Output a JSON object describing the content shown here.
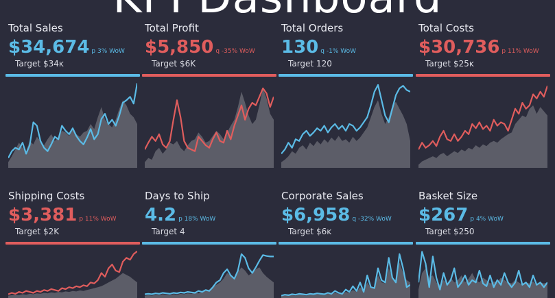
{
  "header": {
    "title": "KPI Dashboard"
  },
  "colors": {
    "background": "#2b2c3b",
    "blue": "#5bbbe6",
    "red": "#e05d5d",
    "area": "#5c5d68"
  },
  "kpis": [
    {
      "label": "Total Sales",
      "value": "$34,674",
      "change": "p 3% WoW",
      "target": "Target $34ĸ",
      "status": "blue",
      "line": [
        0.1,
        0.18,
        0.22,
        0.2,
        0.28,
        0.15,
        0.25,
        0.52,
        0.48,
        0.3,
        0.22,
        0.18,
        0.26,
        0.35,
        0.32,
        0.48,
        0.42,
        0.38,
        0.45,
        0.36,
        0.3,
        0.26,
        0.34,
        0.44,
        0.32,
        0.38,
        0.56,
        0.62,
        0.5,
        0.55,
        0.48,
        0.6,
        0.75,
        0.78,
        0.82,
        0.74,
        0.98
      ],
      "area": [
        0.05,
        0.12,
        0.2,
        0.28,
        0.22,
        0.18,
        0.3,
        0.26,
        0.35,
        0.3,
        0.25,
        0.32,
        0.38,
        0.3,
        0.35,
        0.42,
        0.4,
        0.36,
        0.45,
        0.38,
        0.35,
        0.4,
        0.42,
        0.5,
        0.44,
        0.58,
        0.7,
        0.55,
        0.5,
        0.46,
        0.55,
        0.68,
        0.78,
        0.72,
        0.62,
        0.58,
        0.5
      ]
    },
    {
      "label": "Total Profit",
      "value": "$5,850",
      "change": "q -35% WoW",
      "target": "Target $6K",
      "status": "red",
      "line": [
        0.2,
        0.28,
        0.35,
        0.3,
        0.38,
        0.26,
        0.22,
        0.3,
        0.55,
        0.78,
        0.58,
        0.3,
        0.22,
        0.2,
        0.18,
        0.35,
        0.3,
        0.25,
        0.22,
        0.32,
        0.4,
        0.3,
        0.28,
        0.42,
        0.32,
        0.48,
        0.6,
        0.72,
        0.55,
        0.68,
        0.75,
        0.72,
        0.82,
        0.92,
        0.86,
        0.7,
        0.82
      ],
      "area": [
        0.05,
        0.1,
        0.08,
        0.18,
        0.22,
        0.15,
        0.2,
        0.28,
        0.26,
        0.3,
        0.22,
        0.18,
        0.25,
        0.3,
        0.32,
        0.4,
        0.35,
        0.28,
        0.3,
        0.36,
        0.42,
        0.38,
        0.32,
        0.4,
        0.48,
        0.55,
        0.7,
        0.88,
        0.75,
        0.6,
        0.5,
        0.55,
        0.72,
        0.92,
        0.8,
        0.62,
        0.55
      ]
    },
    {
      "label": "Total Orders",
      "value": "130",
      "change": "q -1% WoW",
      "target": "Target 120",
      "status": "blue",
      "line": [
        0.15,
        0.2,
        0.28,
        0.22,
        0.32,
        0.3,
        0.38,
        0.42,
        0.36,
        0.4,
        0.45,
        0.42,
        0.48,
        0.4,
        0.46,
        0.5,
        0.44,
        0.48,
        0.42,
        0.5,
        0.48,
        0.42,
        0.46,
        0.52,
        0.58,
        0.72,
        0.88,
        0.96,
        0.78,
        0.6,
        0.52,
        0.68,
        0.84,
        0.92,
        0.95,
        0.9,
        0.88
      ],
      "area": [
        0.05,
        0.08,
        0.12,
        0.18,
        0.15,
        0.22,
        0.25,
        0.2,
        0.28,
        0.24,
        0.3,
        0.26,
        0.32,
        0.28,
        0.34,
        0.3,
        0.36,
        0.3,
        0.32,
        0.28,
        0.35,
        0.3,
        0.34,
        0.4,
        0.46,
        0.58,
        0.7,
        0.78,
        0.62,
        0.5,
        0.58,
        0.72,
        0.76,
        0.68,
        0.6,
        0.5,
        0.3
      ]
    },
    {
      "label": "Total Costs",
      "value": "$30,736",
      "change": "p 11% WoW",
      "target": "Target $25ĸ",
      "status": "red",
      "line": [
        0.2,
        0.28,
        0.22,
        0.25,
        0.3,
        0.24,
        0.35,
        0.42,
        0.32,
        0.3,
        0.38,
        0.3,
        0.35,
        0.42,
        0.38,
        0.5,
        0.45,
        0.52,
        0.44,
        0.48,
        0.42,
        0.55,
        0.48,
        0.52,
        0.5,
        0.42,
        0.55,
        0.68,
        0.62,
        0.75,
        0.68,
        0.72,
        0.85,
        0.8,
        0.88,
        0.82,
        0.95
      ],
      "area": [
        0.02,
        0.06,
        0.08,
        0.1,
        0.12,
        0.1,
        0.14,
        0.16,
        0.12,
        0.15,
        0.18,
        0.16,
        0.2,
        0.18,
        0.22,
        0.2,
        0.25,
        0.22,
        0.26,
        0.24,
        0.28,
        0.3,
        0.28,
        0.32,
        0.35,
        0.38,
        0.4,
        0.5,
        0.55,
        0.6,
        0.58,
        0.68,
        0.72,
        0.62,
        0.7,
        0.65,
        0.6
      ]
    },
    {
      "label": "Shipping Costs",
      "value": "$3,381",
      "change": "p 11% WoW",
      "target": "Target $2K",
      "status": "red",
      "line": [
        0.05,
        0.08,
        0.06,
        0.1,
        0.08,
        0.12,
        0.1,
        0.08,
        0.12,
        0.1,
        0.14,
        0.12,
        0.16,
        0.14,
        0.12,
        0.18,
        0.16,
        0.2,
        0.18,
        0.22,
        0.2,
        0.24,
        0.22,
        0.3,
        0.28,
        0.35,
        0.5,
        0.42,
        0.6,
        0.68,
        0.55,
        0.52,
        0.74,
        0.82,
        0.78,
        0.9,
        0.96
      ],
      "area": [
        0.02,
        0.03,
        0.04,
        0.03,
        0.05,
        0.04,
        0.06,
        0.05,
        0.07,
        0.06,
        0.08,
        0.07,
        0.09,
        0.08,
        0.1,
        0.09,
        0.11,
        0.1,
        0.12,
        0.11,
        0.13,
        0.12,
        0.14,
        0.16,
        0.18,
        0.2,
        0.22,
        0.26,
        0.3,
        0.34,
        0.38,
        0.44,
        0.5,
        0.46,
        0.42,
        0.36,
        0.3
      ]
    },
    {
      "label": "Days to Ship",
      "value": "4.2",
      "change": "p 18% WoW",
      "target": "Target 4",
      "status": "blue",
      "line": [
        0.05,
        0.06,
        0.05,
        0.07,
        0.06,
        0.08,
        0.07,
        0.06,
        0.08,
        0.07,
        0.09,
        0.08,
        0.1,
        0.09,
        0.08,
        0.12,
        0.1,
        0.14,
        0.12,
        0.2,
        0.3,
        0.35,
        0.5,
        0.58,
        0.45,
        0.38,
        0.55,
        0.9,
        0.82,
        0.6,
        0.5,
        0.62,
        0.76,
        0.88,
        0.86,
        0.85,
        0.85
      ],
      "area": [
        0.02,
        0.03,
        0.02,
        0.04,
        0.03,
        0.05,
        0.04,
        0.03,
        0.05,
        0.04,
        0.06,
        0.05,
        0.07,
        0.06,
        0.08,
        0.07,
        0.1,
        0.12,
        0.15,
        0.2,
        0.25,
        0.3,
        0.38,
        0.5,
        0.45,
        0.4,
        0.52,
        0.62,
        0.55,
        0.45,
        0.5,
        0.58,
        0.62,
        0.5,
        0.42,
        0.36,
        0.3
      ]
    },
    {
      "label": "Corporate Sales",
      "value": "$6,958",
      "change": "q -32% WoW",
      "target": "Target $6ĸ",
      "status": "blue",
      "line": [
        0.02,
        0.04,
        0.03,
        0.05,
        0.04,
        0.06,
        0.05,
        0.04,
        0.06,
        0.05,
        0.07,
        0.06,
        0.05,
        0.08,
        0.06,
        0.12,
        0.08,
        0.06,
        0.15,
        0.1,
        0.22,
        0.12,
        0.3,
        0.1,
        0.45,
        0.2,
        0.18,
        0.6,
        0.35,
        0.3,
        0.82,
        0.4,
        0.3,
        0.9,
        0.6,
        0.2,
        0.25
      ],
      "area": [
        0.01,
        0.02,
        0.02,
        0.03,
        0.02,
        0.04,
        0.03,
        0.02,
        0.04,
        0.03,
        0.05,
        0.04,
        0.03,
        0.06,
        0.05,
        0.08,
        0.06,
        0.05,
        0.1,
        0.08,
        0.14,
        0.1,
        0.2,
        0.12,
        0.3,
        0.18,
        0.2,
        0.45,
        0.3,
        0.28,
        0.6,
        0.4,
        0.35,
        0.72,
        0.5,
        0.35,
        0.3
      ]
    },
    {
      "label": "Basket Size",
      "value": "$267",
      "change": "p 4% WoW",
      "target": "Target $250",
      "status": "blue",
      "line": [
        0.3,
        0.95,
        0.7,
        0.2,
        0.85,
        0.4,
        0.15,
        0.5,
        0.25,
        0.35,
        0.6,
        0.2,
        0.3,
        0.45,
        0.25,
        0.35,
        0.3,
        0.55,
        0.28,
        0.22,
        0.45,
        0.2,
        0.35,
        0.25,
        0.5,
        0.3,
        0.2,
        0.3,
        0.55,
        0.25,
        0.3,
        0.2,
        0.45,
        0.25,
        0.3,
        0.2,
        0.3
      ],
      "area": [
        0.15,
        0.5,
        0.6,
        0.4,
        0.45,
        0.3,
        0.25,
        0.35,
        0.28,
        0.4,
        0.3,
        0.35,
        0.45,
        0.3,
        0.38,
        0.5,
        0.35,
        0.3,
        0.4,
        0.35,
        0.28,
        0.32,
        0.3,
        0.4,
        0.35,
        0.3,
        0.28,
        0.35,
        0.3,
        0.25,
        0.3,
        0.28,
        0.32,
        0.25,
        0.3,
        0.28,
        0.3
      ]
    }
  ]
}
